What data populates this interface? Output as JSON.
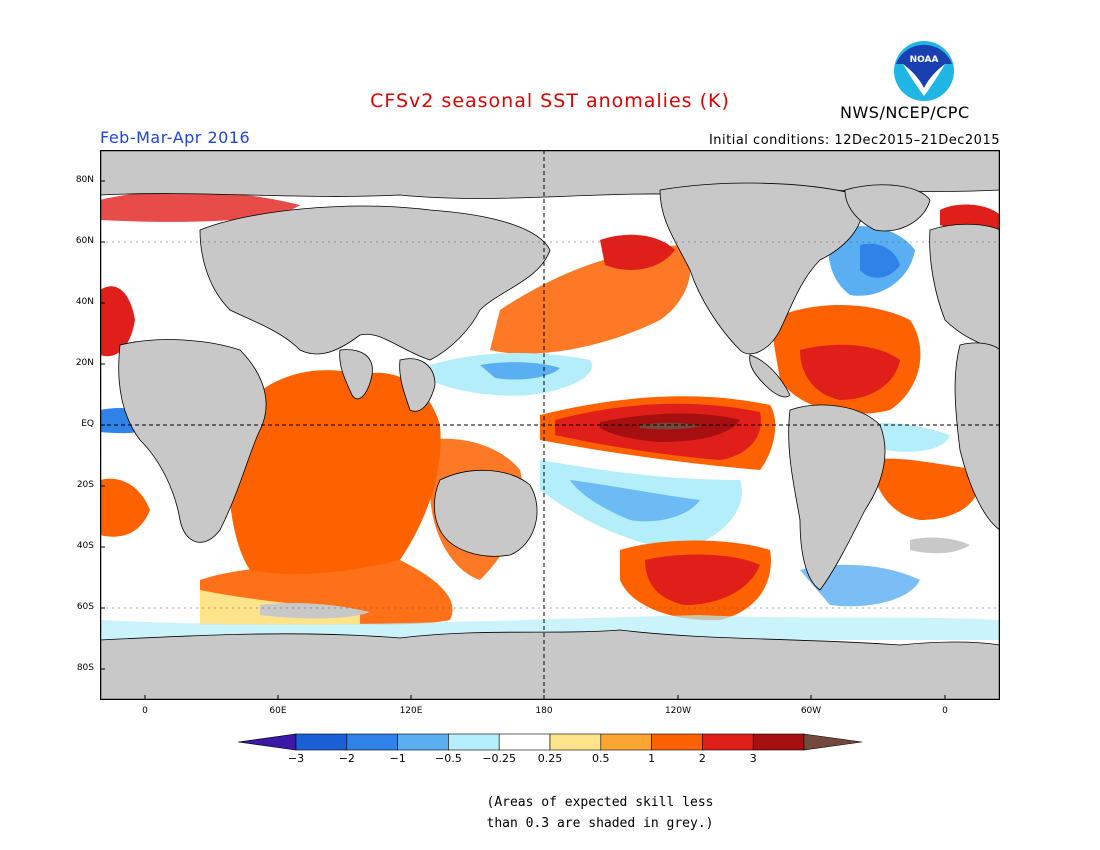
{
  "header": {
    "title": "CFSv2 seasonal SST anomalies (K)",
    "season": "Feb-Mar-Apr 2016",
    "initial_conditions": "Initial conditions: 12Dec2015–21Dec2015",
    "agency": "NWS/NCEP/CPC",
    "logo_text": "NOAA",
    "logo_icon": "noaa-logo-icon"
  },
  "map": {
    "projection": "cylindrical equidistant",
    "longitude_range": [
      "20W",
      "20E (wrapping, 400 deg span)"
    ],
    "latitude_range": [
      "90S",
      "90N"
    ],
    "lat_labels": [
      "80N",
      "60N",
      "40N",
      "20N",
      "EQ",
      "20S",
      "40S",
      "60S",
      "80S"
    ],
    "lon_labels": [
      "0",
      "60E",
      "120E",
      "180",
      "120W",
      "60W",
      "0"
    ],
    "reference_lines": [
      "equator dashed",
      "180 dashed"
    ],
    "land_color": "#c8c8c8",
    "grey_meaning": "low skill"
  },
  "colorbar": {
    "ticks": [
      "−3",
      "−2",
      "−1",
      "−0.5",
      "−0.25",
      "0.25",
      "0.5",
      "1",
      "2",
      "3"
    ],
    "colors": [
      "#3b18a6",
      "#1a5fd6",
      "#2e82e8",
      "#5aaef2",
      "#b4eefa",
      "#ffffff",
      "#fde38a",
      "#fca533",
      "#fe6200",
      "#e11f1a",
      "#a50f0f",
      "#74493d"
    ]
  },
  "footnote": {
    "line1": "(Areas of expected skill less",
    "line2": "than 0.3 are shaded in grey.)"
  }
}
